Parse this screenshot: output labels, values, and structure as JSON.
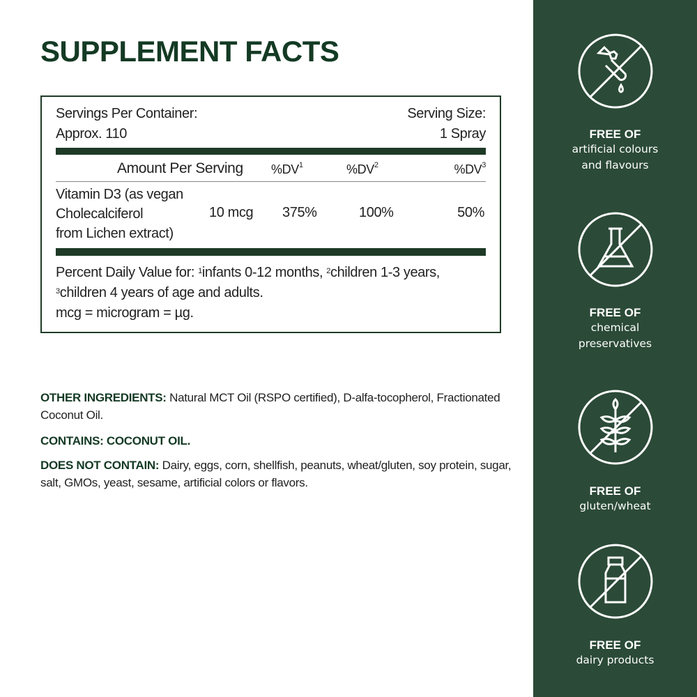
{
  "title": "SUPPLEMENT FACTS",
  "facts": {
    "servings_label": "Servings Per Container:",
    "servings_value": "Approx. 110",
    "size_label": "Serving Size:",
    "size_value": "1 Spray",
    "col_amount": "Amount Per Serving",
    "col_dv": "%DV",
    "sup1": "1",
    "sup2": "2",
    "sup3": "3",
    "row": {
      "name_lines": [
        "Vitamin D3 (as vegan",
        "Cholecalciferol",
        "from Lichen extract)"
      ],
      "amount": "10 mcg",
      "dv1": "375%",
      "dv2": "100%",
      "dv3": "50%"
    },
    "footnote_a": "Percent Daily Value for: ",
    "footnote_1": "infants 0-12 months, ",
    "footnote_2": "children 1-3 years,",
    "footnote_3": "children 4 years of age and adults.",
    "footnote_mcg": "mcg = microgram = µg."
  },
  "ingredients": {
    "other_label": "OTHER INGREDIENTS:",
    "other_text": " Natural MCT Oil (RSPO certified), D-alfa-tocopherol, Fractionated Coconut Oil.",
    "contains": "CONTAINS: COCONUT OIL.",
    "not_label": "DOES NOT CONTAIN:",
    "not_text": " Dairy, eggs, corn, shellfish, peanuts, wheat/gluten, soy protein, sugar, salt, GMOs, yeast, sesame, artificial colors or flavors."
  },
  "badges": [
    {
      "icon": "dropper-icon",
      "heading": "FREE OF",
      "lines": [
        "artificial colours",
        "and flavours"
      ]
    },
    {
      "icon": "flask-icon",
      "heading": "FREE OF",
      "lines": [
        "chemical",
        "preservatives"
      ]
    },
    {
      "icon": "wheat-icon",
      "heading": "FREE OF",
      "lines": [
        "gluten/wheat"
      ]
    },
    {
      "icon": "milk-bottle-icon",
      "heading": "FREE OF",
      "lines": [
        "dairy products"
      ]
    }
  ],
  "colors": {
    "brand_green": "#2b4a37",
    "title_green": "#143a24"
  }
}
